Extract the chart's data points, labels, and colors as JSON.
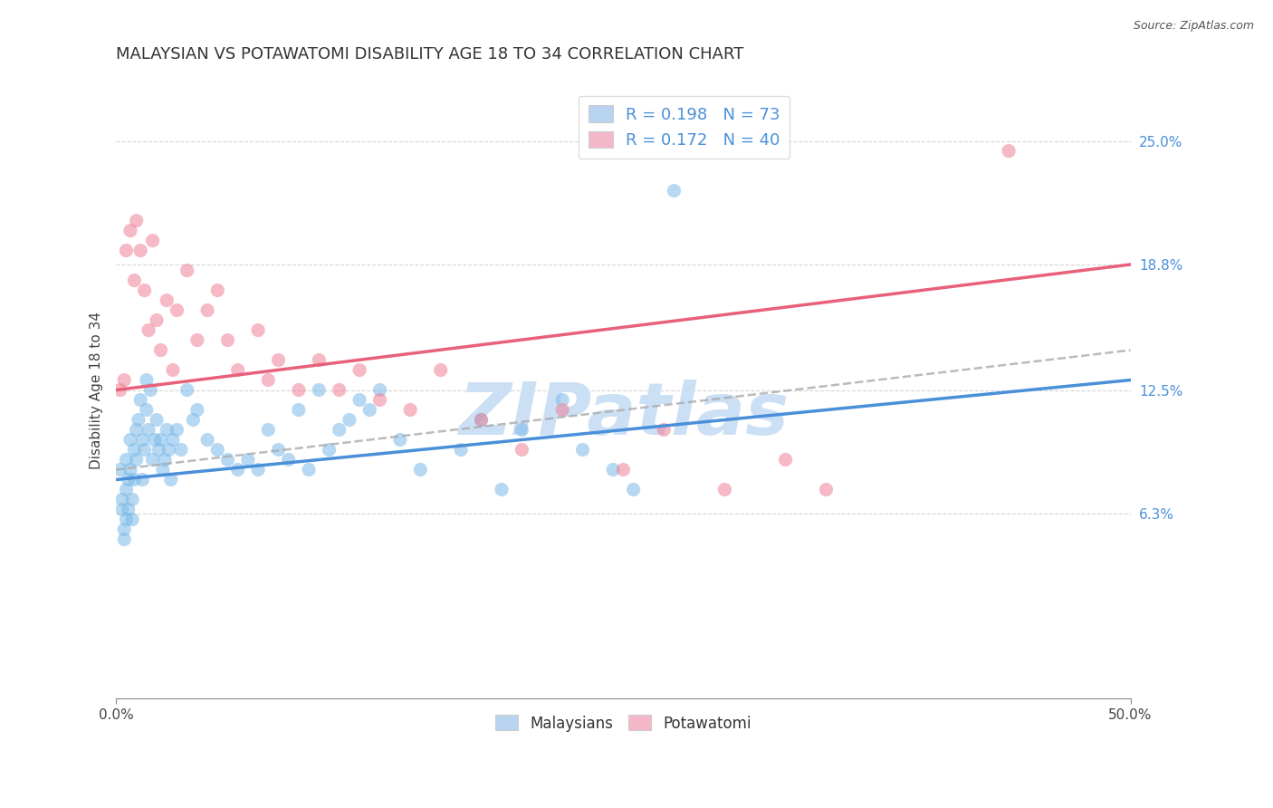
{
  "title": "MALAYSIAN VS POTAWATOMI DISABILITY AGE 18 TO 34 CORRELATION CHART",
  "source": "Source: ZipAtlas.com",
  "ylabel": "Disability Age 18 to 34",
  "ytick_labels": [
    "6.3%",
    "12.5%",
    "18.8%",
    "25.0%"
  ],
  "ytick_values": [
    6.3,
    12.5,
    18.8,
    25.0
  ],
  "legend_label1": "R = 0.198   N = 73",
  "legend_label2": "R = 0.172   N = 40",
  "legend_color1": "#b8d4f0",
  "legend_color2": "#f4b8c8",
  "scatter_color1": "#7ab8e8",
  "scatter_color2": "#f08098",
  "line_color1": "#4a90d9",
  "line_color2": "#e8607a",
  "dashed_color": "#aaaaaa",
  "watermark": "ZIPatlas",
  "watermark_color": "#cce0f5",
  "xlim": [
    0.0,
    50.0
  ],
  "ylim": [
    -3.0,
    28.0
  ],
  "blue_line_x0": 0.0,
  "blue_line_y0": 8.0,
  "blue_line_x1": 50.0,
  "blue_line_y1": 13.0,
  "pink_line_x0": 0.0,
  "pink_line_y0": 12.5,
  "pink_line_x1": 50.0,
  "pink_line_y1": 18.8,
  "malaysians_x": [
    0.2,
    0.3,
    0.3,
    0.4,
    0.4,
    0.5,
    0.5,
    0.5,
    0.6,
    0.6,
    0.7,
    0.7,
    0.8,
    0.8,
    0.9,
    0.9,
    1.0,
    1.0,
    1.1,
    1.2,
    1.3,
    1.3,
    1.4,
    1.5,
    1.5,
    1.6,
    1.7,
    1.8,
    1.9,
    2.0,
    2.1,
    2.2,
    2.3,
    2.4,
    2.5,
    2.6,
    2.7,
    2.8,
    3.0,
    3.2,
    3.5,
    3.8,
    4.0,
    4.5,
    5.0,
    5.5,
    6.0,
    6.5,
    7.0,
    7.5,
    8.0,
    8.5,
    9.0,
    9.5,
    10.0,
    10.5,
    11.0,
    11.5,
    12.0,
    12.5,
    13.0,
    14.0,
    15.0,
    17.0,
    18.0,
    19.0,
    20.0,
    22.0,
    23.0,
    24.5,
    25.5,
    27.5,
    32.0
  ],
  "malaysians_y": [
    8.5,
    7.0,
    6.5,
    5.5,
    5.0,
    9.0,
    7.5,
    6.0,
    8.0,
    6.5,
    10.0,
    8.5,
    7.0,
    6.0,
    9.5,
    8.0,
    10.5,
    9.0,
    11.0,
    12.0,
    10.0,
    8.0,
    9.5,
    13.0,
    11.5,
    10.5,
    12.5,
    9.0,
    10.0,
    11.0,
    9.5,
    10.0,
    8.5,
    9.0,
    10.5,
    9.5,
    8.0,
    10.0,
    10.5,
    9.5,
    12.5,
    11.0,
    11.5,
    10.0,
    9.5,
    9.0,
    8.5,
    9.0,
    8.5,
    10.5,
    9.5,
    9.0,
    11.5,
    8.5,
    12.5,
    9.5,
    10.5,
    11.0,
    12.0,
    11.5,
    12.5,
    10.0,
    8.5,
    9.5,
    11.0,
    7.5,
    10.5,
    12.0,
    9.5,
    8.5,
    7.5,
    22.5,
    25.0
  ],
  "potawatomi_x": [
    0.2,
    0.4,
    0.5,
    0.7,
    0.9,
    1.0,
    1.2,
    1.4,
    1.6,
    1.8,
    2.0,
    2.2,
    2.5,
    2.8,
    3.0,
    3.5,
    4.0,
    4.5,
    5.0,
    5.5,
    6.0,
    7.0,
    7.5,
    8.0,
    9.0,
    10.0,
    11.0,
    12.0,
    13.0,
    14.5,
    16.0,
    18.0,
    20.0,
    22.0,
    25.0,
    27.0,
    30.0,
    33.0,
    35.0,
    44.0
  ],
  "potawatomi_y": [
    12.5,
    13.0,
    19.5,
    20.5,
    18.0,
    21.0,
    19.5,
    17.5,
    15.5,
    20.0,
    16.0,
    14.5,
    17.0,
    13.5,
    16.5,
    18.5,
    15.0,
    16.5,
    17.5,
    15.0,
    13.5,
    15.5,
    13.0,
    14.0,
    12.5,
    14.0,
    12.5,
    13.5,
    12.0,
    11.5,
    13.5,
    11.0,
    9.5,
    11.5,
    8.5,
    10.5,
    7.5,
    9.0,
    7.5,
    24.5
  ]
}
